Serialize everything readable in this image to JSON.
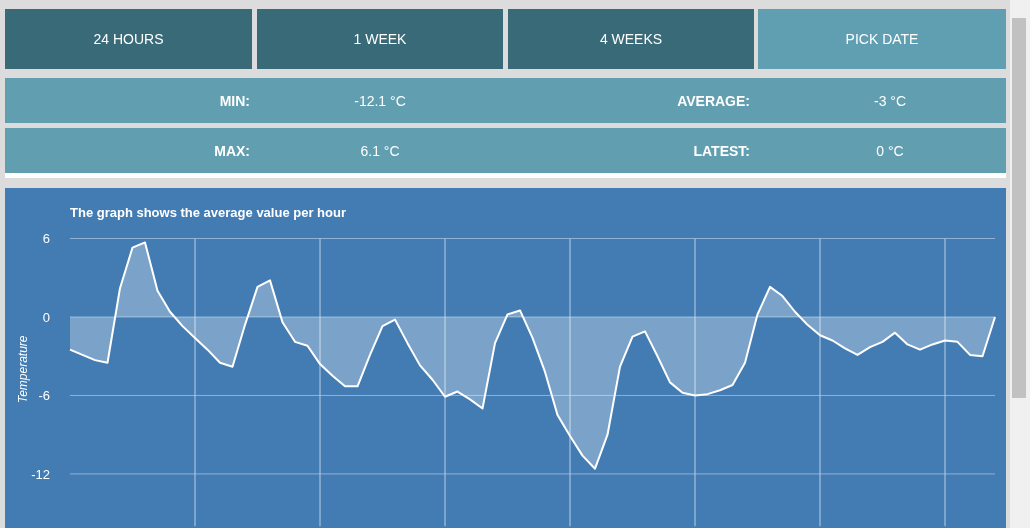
{
  "chart_data": [
    {
      "type": "other",
      "annotations": [
        "24 HOURS",
        "1 WEEK",
        "4 WEEKS",
        "PICK DATE"
      ]
    },
    {
      "type": "other",
      "annotations": [
        "MIN:",
        "-12.1 °C",
        "AVERAGE:",
        "-3 °C",
        "MAX:",
        "6.1 °C",
        "LATEST:",
        "0 °C"
      ]
    },
    {
      "type": "area",
      "title": "The graph shows the average value per hour",
      "ylabel": "Temperature",
      "categories": [
        null,
        null,
        null,
        null,
        null,
        null,
        null,
        null,
        null,
        null,
        null,
        null,
        null,
        null,
        null,
        null,
        null,
        null,
        null,
        null,
        null,
        null,
        null,
        null,
        null,
        null,
        null,
        null,
        null,
        null,
        null,
        null,
        null,
        null,
        null,
        null,
        null,
        null,
        null,
        null,
        null,
        null,
        null,
        null,
        null,
        null,
        null,
        null,
        null,
        null,
        null,
        null,
        null,
        null,
        null,
        null,
        null,
        null,
        null,
        null,
        null,
        null,
        null,
        null,
        null,
        null,
        null,
        null,
        null,
        null,
        null,
        null,
        null,
        null,
        null
      ],
      "series": [
        {
          "color": "#ffffff",
          "values": [
            -2.5,
            -2.9,
            -3.3,
            -3.5,
            2.2,
            5.3,
            5.7,
            2.0,
            0.4,
            -0.7,
            -1.6,
            -2.5,
            -3.5,
            -3.8,
            -0.6,
            2.3,
            2.8,
            -0.4,
            -1.9,
            -2.2,
            -3.6,
            -4.5,
            -5.3,
            -5.3,
            -2.9,
            -0.7,
            -0.2,
            -2.0,
            -3.7,
            -4.8,
            -6.1,
            -5.7,
            -6.3,
            -7.0,
            -2.0,
            0.2,
            0.5,
            -1.6,
            -4.2,
            -7.5,
            -9.1,
            -10.6,
            -11.6,
            -9.0,
            -3.8,
            -1.5,
            -1.1,
            -3.0,
            -5.0,
            -5.8,
            -6.0,
            -5.9,
            -5.6,
            -5.2,
            -3.5,
            0.2,
            2.3,
            1.6,
            0.4,
            -0.6,
            -1.4,
            -1.8,
            -2.4,
            -2.9,
            -2.3,
            -1.9,
            -1.2,
            -2.1,
            -2.5,
            -2.1,
            -1.8,
            -1.9,
            -2.9,
            -3.0,
            0.0
          ]
        }
      ],
      "ylim": [
        -16,
        6
      ],
      "yticks": [
        6,
        0,
        -6,
        -12
      ],
      "grid": true,
      "tick_labels": "y"
    }
  ]
}
